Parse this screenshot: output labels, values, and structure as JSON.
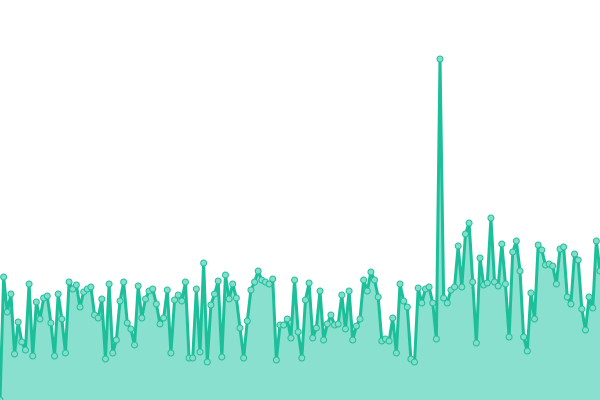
{
  "chart_data": {
    "type": "area",
    "title": "",
    "xlabel": "",
    "ylabel": "",
    "ylim": [
      0,
      100
    ],
    "grid": false,
    "legend": "none",
    "colors": {
      "line": "#1dbf9a",
      "fill": "#8ae0cf",
      "marker_fill": "#84ddca",
      "marker_stroke": "#1dbf9a"
    },
    "values": [
      0,
      30.75,
      22,
      26.5,
      11.5,
      19.5,
      14.5,
      12.5,
      29,
      11,
      24.5,
      20.25,
      25.5,
      26,
      19.25,
      11,
      26.5,
      20.25,
      11.75,
      29.5,
      27.75,
      28.75,
      23.25,
      27,
      27.75,
      28.25,
      21.25,
      20.5,
      25.25,
      10.25,
      29,
      11.75,
      15,
      24.75,
      29.5,
      19.25,
      17.75,
      13.75,
      28.5,
      20.5,
      25.25,
      27.25,
      27.75,
      24,
      19,
      20.5,
      27.5,
      11.75,
      25,
      26.25,
      24.75,
      29.5,
      10.5,
      10.5,
      27.75,
      12,
      34.25,
      9.5,
      23.75,
      26.5,
      29.75,
      10.75,
      31.25,
      25.25,
      29,
      25.5,
      18,
      10.5,
      19.75,
      27.5,
      29.5,
      32.25,
      30,
      29.5,
      29,
      30.25,
      10,
      18.75,
      18.75,
      20.25,
      15.5,
      30,
      17,
      10.5,
      25,
      29.25,
      15.5,
      18,
      27.25,
      15,
      19,
      21.25,
      18.75,
      19,
      26.25,
      17.75,
      27.25,
      15,
      18.5,
      20.25,
      30,
      27.25,
      32,
      30,
      25.75,
      14.75,
      15.25,
      14.75,
      20.5,
      11.75,
      29,
      24.75,
      23.25,
      10.25,
      9.5,
      28,
      24.25,
      27.75,
      28.25,
      24.25,
      15.25,
      85.25,
      25.5,
      24.25,
      27.5,
      28.25,
      38.5,
      28.25,
      41.5,
      44.25,
      29.5,
      14.25,
      35.5,
      28.75,
      29.25,
      45.5,
      29.5,
      28.5,
      39,
      29,
      15.75,
      37,
      39.75,
      32.25,
      15.75,
      12.25,
      26.75,
      20.25,
      38.75,
      37.5,
      33.75,
      34,
      33.5,
      29,
      37.75,
      38.25,
      25.75,
      24,
      36.5,
      35,
      22.75,
      17.5,
      25.75,
      23,
      39.75,
      32.25
    ]
  }
}
